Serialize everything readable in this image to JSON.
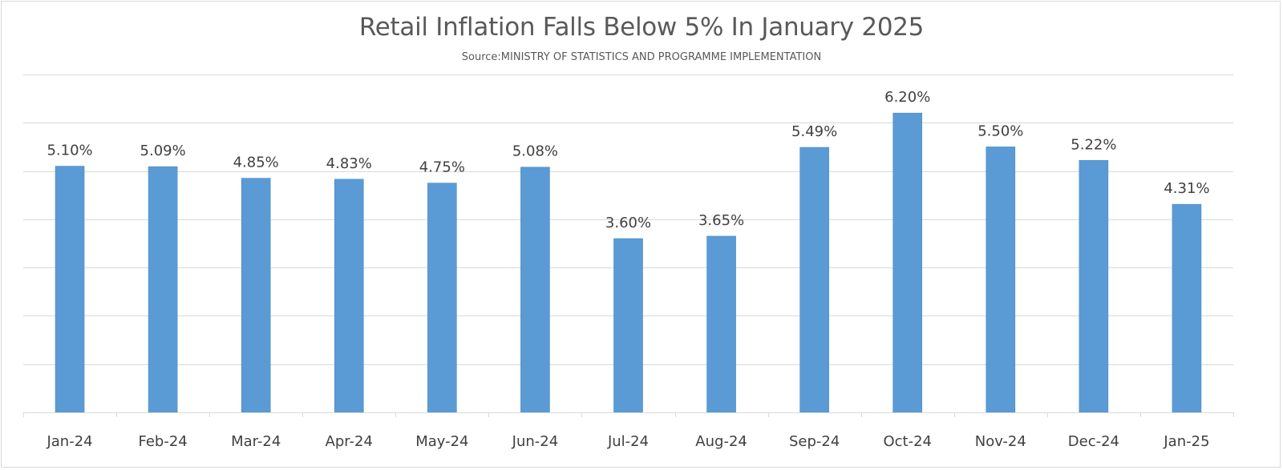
{
  "chart_data": {
    "type": "bar",
    "title": "Retail Inflation Falls Below 5% In January 2025",
    "subtitle": "Source:MINISTRY OF STATISTICS AND PROGRAMME IMPLEMENTATION",
    "categories": [
      "Jan-24",
      "Feb-24",
      "Mar-24",
      "Apr-24",
      "May-24",
      "Jun-24",
      "Jul-24",
      "Aug-24",
      "Sep-24",
      "Oct-24",
      "Nov-24",
      "Dec-24",
      "Jan-25"
    ],
    "values": [
      5.1,
      5.09,
      4.85,
      4.83,
      4.75,
      5.08,
      3.6,
      3.65,
      5.49,
      6.2,
      5.5,
      5.22,
      4.31
    ],
    "data_labels": [
      "5.10%",
      "5.09%",
      "4.85%",
      "4.83%",
      "4.75%",
      "5.08%",
      "3.60%",
      "3.65%",
      "5.49%",
      "6.20%",
      "5.50%",
      "5.22%",
      "4.31%"
    ],
    "ylim": [
      0,
      7
    ],
    "y_axis_visible": false,
    "grid": true,
    "bar_color": "#5b9bd5",
    "grid_color": "#d9d9d9",
    "legend": "none"
  }
}
